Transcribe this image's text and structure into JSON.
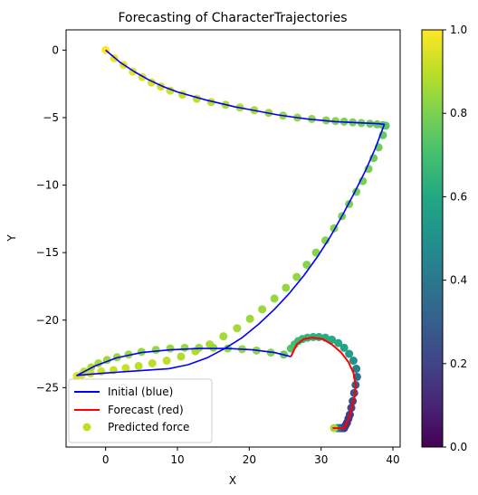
{
  "chart_data": {
    "type": "scatter",
    "title": "Forecasting of CharacterTrajectories",
    "xlabel": "X",
    "ylabel": "Y",
    "xlim": [
      -5.5,
      41
    ],
    "ylim": [
      -29.4,
      1.5
    ],
    "xticks": [
      0,
      10,
      20,
      30,
      40
    ],
    "yticks": [
      0,
      -5,
      -10,
      -15,
      -20,
      -25
    ],
    "grid": false,
    "legend_position": "lower-left",
    "colormap": "viridis",
    "colorbar": {
      "min": 0.0,
      "max": 1.0,
      "ticks": [
        0.0,
        0.2,
        0.4,
        0.6,
        0.8,
        1.0
      ],
      "tick_labels": [
        "0.0",
        "0.2",
        "0.4",
        "0.6",
        "0.8",
        "1.0"
      ]
    },
    "series": [
      {
        "name": "Initial (blue)",
        "kind": "line",
        "color": "#0000ff",
        "x": [
          0,
          2,
          4,
          6,
          8,
          10,
          12,
          14,
          16,
          18,
          20,
          22,
          24,
          26,
          28,
          30,
          32,
          34,
          36,
          38,
          38.8,
          37.6,
          36.2,
          34.6,
          33.0,
          31.3,
          29.5,
          27.6,
          25.6,
          23.5,
          21.3,
          19.0,
          16.6,
          14.1,
          11.5,
          8.8,
          6.0,
          3.2,
          0.5,
          -2.0,
          -4.0,
          -1.5,
          1.5,
          5.0,
          9.0,
          13.0,
          17.0,
          20.5,
          23.5,
          25.8
        ],
        "y": [
          0,
          -0.9,
          -1.6,
          -2.2,
          -2.7,
          -3.1,
          -3.4,
          -3.7,
          -3.95,
          -4.2,
          -4.4,
          -4.6,
          -4.8,
          -4.95,
          -5.1,
          -5.2,
          -5.3,
          -5.35,
          -5.4,
          -5.45,
          -5.5,
          -7.2,
          -8.9,
          -10.6,
          -12.2,
          -13.8,
          -15.3,
          -16.7,
          -18.0,
          -19.2,
          -20.3,
          -21.3,
          -22.1,
          -22.8,
          -23.3,
          -23.6,
          -23.7,
          -23.8,
          -23.9,
          -24.0,
          -24.1,
          -23.4,
          -22.8,
          -22.4,
          -22.2,
          -22.1,
          -22.1,
          -22.2,
          -22.4,
          -22.7
        ]
      },
      {
        "name": "Forecast (red)",
        "kind": "line",
        "color": "#ff0000",
        "x": [
          25.8,
          26.6,
          27.6,
          28.8,
          30.2,
          31.5,
          32.8,
          33.8,
          34.5,
          34.8,
          34.7,
          34.4,
          34.1,
          33.8,
          33.5,
          33.2,
          32.9,
          32.4,
          31.6
        ],
        "y": [
          -22.7,
          -21.8,
          -21.4,
          -21.3,
          -21.4,
          -21.8,
          -22.4,
          -23.1,
          -23.9,
          -24.8,
          -25.6,
          -26.2,
          -26.8,
          -27.3,
          -27.7,
          -28.0,
          -28.0,
          -28.0,
          -28.0
        ]
      },
      {
        "name": "Predicted force",
        "kind": "scatter",
        "color": "#c2df23",
        "x": [
          0,
          1.2,
          2.5,
          3.8,
          5.1,
          6.4,
          7.7,
          9.0,
          10.7,
          12.7,
          14.7,
          16.7,
          18.7,
          20.7,
          22.7,
          24.7,
          26.7,
          28.7,
          30.7,
          32.0,
          33.2,
          34.4,
          35.6,
          36.8,
          37.8,
          38.6,
          39.0,
          38.6,
          38.0,
          37.3,
          36.6,
          35.8,
          34.9,
          33.9,
          32.9,
          31.8,
          30.6,
          29.3,
          28.0,
          26.6,
          25.1,
          23.5,
          21.8,
          20.1,
          18.3,
          16.4,
          14.5,
          12.5,
          10.5,
          8.5,
          6.5,
          4.6,
          2.8,
          1.1,
          -0.6,
          -2.1,
          -3.3,
          -4.0,
          -3.0,
          -2.0,
          -1.0,
          0.2,
          1.6,
          3.2,
          5.0,
          7.0,
          9.0,
          11.0,
          13.0,
          15.0,
          17.0,
          19.0,
          21.0,
          23.0,
          24.8,
          25.8,
          26.3,
          26.8,
          27.4,
          28.1,
          28.9,
          29.7,
          30.6,
          31.5,
          32.4,
          33.2,
          33.9,
          34.5,
          34.9,
          35.0,
          34.8,
          34.6,
          34.4,
          34.2,
          34.0,
          33.8,
          33.6,
          33.4,
          33.2,
          33.0,
          32.8,
          32.6,
          32.4,
          32.2,
          31.8
        ],
        "y": [
          0,
          -0.6,
          -1.1,
          -1.6,
          -2.0,
          -2.4,
          -2.7,
          -3.0,
          -3.3,
          -3.6,
          -3.85,
          -4.05,
          -4.25,
          -4.45,
          -4.65,
          -4.85,
          -5.0,
          -5.1,
          -5.2,
          -5.25,
          -5.3,
          -5.35,
          -5.4,
          -5.45,
          -5.5,
          -5.55,
          -5.6,
          -6.3,
          -7.2,
          -8.0,
          -8.8,
          -9.7,
          -10.5,
          -11.4,
          -12.3,
          -13.2,
          -14.1,
          -15.0,
          -15.9,
          -16.8,
          -17.6,
          -18.4,
          -19.2,
          -19.9,
          -20.6,
          -21.2,
          -21.8,
          -22.3,
          -22.7,
          -23.0,
          -23.2,
          -23.4,
          -23.55,
          -23.7,
          -23.8,
          -23.95,
          -24.05,
          -24.15,
          -23.8,
          -23.5,
          -23.2,
          -22.95,
          -22.75,
          -22.55,
          -22.35,
          -22.2,
          -22.1,
          -22.05,
          -22.05,
          -22.05,
          -22.1,
          -22.15,
          -22.25,
          -22.4,
          -22.55,
          -22.1,
          -21.8,
          -21.55,
          -21.4,
          -21.3,
          -21.25,
          -21.25,
          -21.3,
          -21.45,
          -21.7,
          -22.05,
          -22.5,
          -23.0,
          -23.6,
          -24.2,
          -24.8,
          -25.4,
          -26.0,
          -26.5,
          -27.0,
          -27.3,
          -27.6,
          -27.8,
          -28.0,
          -28.0,
          -28.0,
          -28.0,
          -28.0,
          -28.0,
          -28.0
        ],
        "force": [
          1,
          0.98,
          0.97,
          0.96,
          0.95,
          0.94,
          0.93,
          0.92,
          0.92,
          0.9,
          0.9,
          0.88,
          0.88,
          0.87,
          0.86,
          0.85,
          0.85,
          0.84,
          0.83,
          0.82,
          0.8,
          0.8,
          0.8,
          0.78,
          0.77,
          0.76,
          0.74,
          0.76,
          0.78,
          0.78,
          0.8,
          0.8,
          0.8,
          0.8,
          0.8,
          0.82,
          0.82,
          0.82,
          0.82,
          0.84,
          0.84,
          0.84,
          0.85,
          0.85,
          0.86,
          0.86,
          0.87,
          0.88,
          0.88,
          0.9,
          0.9,
          0.9,
          0.92,
          0.92,
          0.93,
          0.94,
          0.95,
          0.95,
          0.9,
          0.88,
          0.87,
          0.86,
          0.85,
          0.85,
          0.84,
          0.84,
          0.84,
          0.84,
          0.84,
          0.84,
          0.84,
          0.84,
          0.83,
          0.82,
          0.78,
          0.72,
          0.7,
          0.68,
          0.66,
          0.65,
          0.64,
          0.63,
          0.62,
          0.61,
          0.6,
          0.58,
          0.55,
          0.5,
          0.42,
          0.36,
          0.3,
          0.26,
          0.23,
          0.2,
          0.18,
          0.17,
          0.16,
          0.16,
          0.16,
          0.17,
          0.18,
          0.2,
          0.25,
          0.4,
          0.86
        ]
      }
    ]
  }
}
